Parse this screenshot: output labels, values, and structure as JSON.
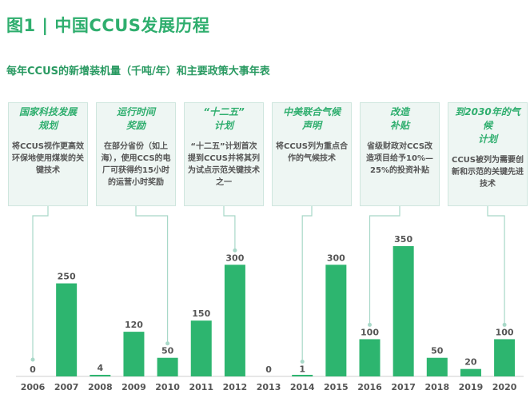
{
  "title": "图1 | 中国CCUS发展历程",
  "chart_data": {
    "type": "bar",
    "title": "每年CCUS的新增装机量（千吨/年）和主要政策大事年表",
    "categories": [
      "2006",
      "2007",
      "2008",
      "2009",
      "2010",
      "2011",
      "2012",
      "2013",
      "2014",
      "2015",
      "2016",
      "2017",
      "2018",
      "2019",
      "2020"
    ],
    "values": [
      0,
      250,
      4,
      120,
      50,
      150,
      300,
      0,
      1,
      300,
      100,
      350,
      50,
      20,
      100
    ],
    "ylim": [
      0,
      350
    ],
    "grid": false,
    "bar_color": "#2db56f",
    "annotations": [
      {
        "year": "2006",
        "heading": "国家科技发展\n规划",
        "text": "将CCUS视作更高效环保地使用煤炭的关键技术"
      },
      {
        "year": "2010",
        "heading": "运行时间\n奖励",
        "text": "在部分省份（如上海），使用CCS的电厂可获得约15小时的运营小时奖励"
      },
      {
        "year": "2012",
        "heading": "“十二五”\n计划",
        "text": "“十二五”计划首次提到CCUS并将其列为试点示范关键技术之一"
      },
      {
        "year": "2014",
        "heading": "中美联合气候\n声明",
        "text": "将CCUS列为重点合作的气候技术"
      },
      {
        "year": "2016",
        "heading": "改造\n补贴",
        "text": "省级财政对CCS改造项目给予10%—25%的投资补贴"
      },
      {
        "year": "2020",
        "heading": "到2030年的气候\n计划",
        "text": "CCUS被列为需要创新和示范的关键先进技术"
      }
    ]
  }
}
